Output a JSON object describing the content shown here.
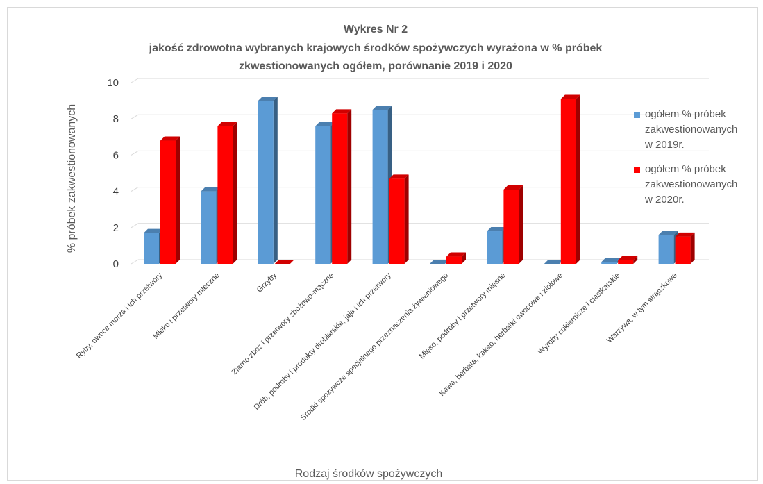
{
  "chart_data": {
    "type": "bar",
    "title": [
      "Wykres Nr 2",
      "jakość zdrowotna wybranych krajowych środków spożywczych wyrażona w % próbek",
      "zkwestionowanych ogółem, porównanie 2019 i 2020"
    ],
    "xlabel": "Rodzaj środków spożywczych",
    "ylabel": "% próbek zakwestionowanych",
    "ylim": [
      0,
      10
    ],
    "yticks": [
      0,
      2,
      4,
      6,
      8,
      10
    ],
    "grid": true,
    "legend_position": "right",
    "categories": [
      "Ryby, owoce morza i ich przetwory",
      "Mleko i przetwory mleczne",
      "Grzyby",
      "Ziarno zbóż i przetwory zbożowo-mączne",
      "Drób, podroby i produkty drobiarskie, jaja i ich przetwory",
      "Środki spozywcze specjalnego przeznaczenia żywieniowego",
      "Mięso, podroby i przetwory mięsne",
      "Kawa, herbata, kakao, herbatki owocowe i ziołowe",
      "Wyroby cukiernicze i ciastkarskie",
      "Warzywa, w tym strączkowe"
    ],
    "series": [
      {
        "name": [
          "ogółem % próbek",
          "zakwestionowanych",
          "w 2019r."
        ],
        "color": "#5b9bd5",
        "values": [
          1.7,
          4.0,
          9.0,
          7.6,
          8.5,
          0.0,
          1.8,
          0.0,
          0.1,
          1.6
        ]
      },
      {
        "name": [
          "ogółem % próbek",
          "zakwestionowanych",
          "w 2020r."
        ],
        "color": "#ff0000",
        "values": [
          6.8,
          7.6,
          0.0,
          8.3,
          4.7,
          0.4,
          4.1,
          9.1,
          0.2,
          1.5
        ]
      }
    ]
  }
}
